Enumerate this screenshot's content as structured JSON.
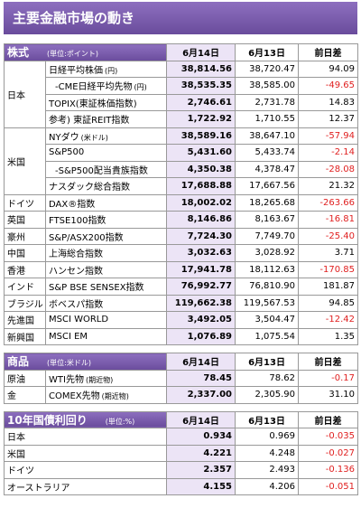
{
  "header": {
    "title": "主要金融市場の動き"
  },
  "sections": [
    {
      "title": "株式",
      "unit": "(単位:ポイント)",
      "columns": [
        "6月14日",
        "6月13日",
        "前日差"
      ],
      "groups": [
        {
          "region": "日本",
          "rows": [
            {
              "name": "日経平均株価",
              "note": "(円)",
              "values": [
                "38,814.56",
                "38,720.47",
                "94.09"
              ]
            },
            {
              "name": "‐CME日経平均先物",
              "note": "(円)",
              "values": [
                "38,535.35",
                "38,585.00",
                "-49.65"
              ]
            },
            {
              "name": "TOPIX(東証株価指数)",
              "values": [
                "2,746.61",
                "2,731.78",
                "14.83"
              ]
            },
            {
              "name": "参考) 東証REIT指数",
              "values": [
                "1,722.92",
                "1,710.55",
                "12.37"
              ]
            }
          ]
        },
        {
          "region": "米国",
          "rows": [
            {
              "name": "NYダウ",
              "note": "(米ドル)",
              "values": [
                "38,589.16",
                "38,647.10",
                "-57.94"
              ]
            },
            {
              "name": "S&P500",
              "values": [
                "5,431.60",
                "5,433.74",
                "-2.14"
              ]
            },
            {
              "name": "‐S&P500配当貴族指数",
              "values": [
                "4,350.38",
                "4,378.47",
                "-28.08"
              ]
            },
            {
              "name": "ナスダック総合指数",
              "values": [
                "17,688.88",
                "17,667.56",
                "21.32"
              ]
            }
          ]
        },
        {
          "region": "ドイツ",
          "rows": [
            {
              "name": "DAX®指数",
              "values": [
                "18,002.02",
                "18,265.68",
                "-263.66"
              ]
            }
          ]
        },
        {
          "region": "英国",
          "rows": [
            {
              "name": "FTSE100指数",
              "values": [
                "8,146.86",
                "8,163.67",
                "-16.81"
              ]
            }
          ]
        },
        {
          "region": "豪州",
          "rows": [
            {
              "name": "S&P/ASX200指数",
              "values": [
                "7,724.30",
                "7,749.70",
                "-25.40"
              ]
            }
          ]
        },
        {
          "region": "中国",
          "rows": [
            {
              "name": "上海総合指数",
              "values": [
                "3,032.63",
                "3,028.92",
                "3.71"
              ]
            }
          ]
        },
        {
          "region": "香港",
          "rows": [
            {
              "name": "ハンセン指数",
              "values": [
                "17,941.78",
                "18,112.63",
                "-170.85"
              ]
            }
          ]
        },
        {
          "region": "インド",
          "rows": [
            {
              "name": "S&P BSE SENSEX指数",
              "values": [
                "76,992.77",
                "76,810.90",
                "181.87"
              ]
            }
          ]
        },
        {
          "region": "ブラジル",
          "rows": [
            {
              "name": "ボベスパ指数",
              "values": [
                "119,662.38",
                "119,567.53",
                "94.85"
              ]
            }
          ]
        },
        {
          "region": "先進国",
          "rows": [
            {
              "name": "MSCI WORLD",
              "values": [
                "3,492.05",
                "3,504.47",
                "-12.42"
              ]
            }
          ]
        },
        {
          "region": "新興国",
          "rows": [
            {
              "name": "MSCI EM",
              "values": [
                "1,076.89",
                "1,075.54",
                "1.35"
              ]
            }
          ]
        }
      ]
    },
    {
      "title": "商品",
      "unit": "(単位:米ドル)",
      "columns": [
        "6月14日",
        "6月13日",
        "前日差"
      ],
      "groups": [
        {
          "region": "原油",
          "rows": [
            {
              "name": "WTI先物",
              "note": "(期近物)",
              "values": [
                "78.45",
                "78.62",
                "-0.17"
              ]
            }
          ]
        },
        {
          "region": "金",
          "rows": [
            {
              "name": "COMEX先物",
              "note": "(期近物)",
              "values": [
                "2,337.00",
                "2,305.90",
                "31.10"
              ]
            }
          ]
        }
      ]
    },
    {
      "title": "10年国債利回り",
      "unit": "(単位:%)",
      "columns": [
        "6月14日",
        "6月13日",
        "前日差"
      ],
      "groups": [
        {
          "region": "日本",
          "rows": [
            {
              "values": [
                "0.934",
                "0.969",
                "-0.035"
              ]
            }
          ]
        },
        {
          "region": "米国",
          "rows": [
            {
              "values": [
                "4.221",
                "4.248",
                "-0.027"
              ]
            }
          ]
        },
        {
          "region": "ドイツ",
          "rows": [
            {
              "values": [
                "2.357",
                "2.493",
                "-0.136"
              ]
            }
          ]
        },
        {
          "region": "オーストラリア",
          "rows": [
            {
              "values": [
                "4.155",
                "4.206",
                "-0.051"
              ]
            }
          ]
        }
      ]
    }
  ]
}
